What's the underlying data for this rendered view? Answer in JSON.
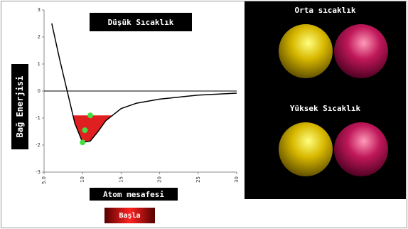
{
  "chart_data": {
    "type": "line",
    "title": "Düşük Sıcaklık",
    "y_label": "Bağ Enerjisi",
    "x_label": "Atom mesafesi",
    "x": [
      6,
      7,
      8,
      9,
      10,
      11,
      12,
      13,
      15,
      17,
      20,
      25,
      30
    ],
    "values": [
      2.5,
      1.2,
      0,
      -1.2,
      -1.9,
      -1.85,
      -1.5,
      -1.1,
      -0.65,
      -0.45,
      -0.3,
      -0.15,
      -0.08
    ],
    "color": "#000000",
    "energy_level": -0.9,
    "fill_color": "#e02020",
    "particles_x": [
      11,
      10.3,
      10
    ],
    "particles_y": [
      -0.9,
      -1.45,
      -1.9
    ],
    "particle_color": "#44dd44",
    "xlim": [
      5,
      30
    ],
    "xticks": [
      {
        "value": 5,
        "label": "5.0"
      },
      10,
      15,
      20,
      25,
      30
    ],
    "ylim": [
      -3,
      3
    ],
    "yticks": [
      -3,
      -2,
      -1,
      0,
      1,
      2,
      3
    ]
  },
  "panel": {
    "labels": [
      "Orta sıcaklık",
      "Yüksek Sıcaklık"
    ]
  },
  "button": {
    "label": "Başla"
  }
}
